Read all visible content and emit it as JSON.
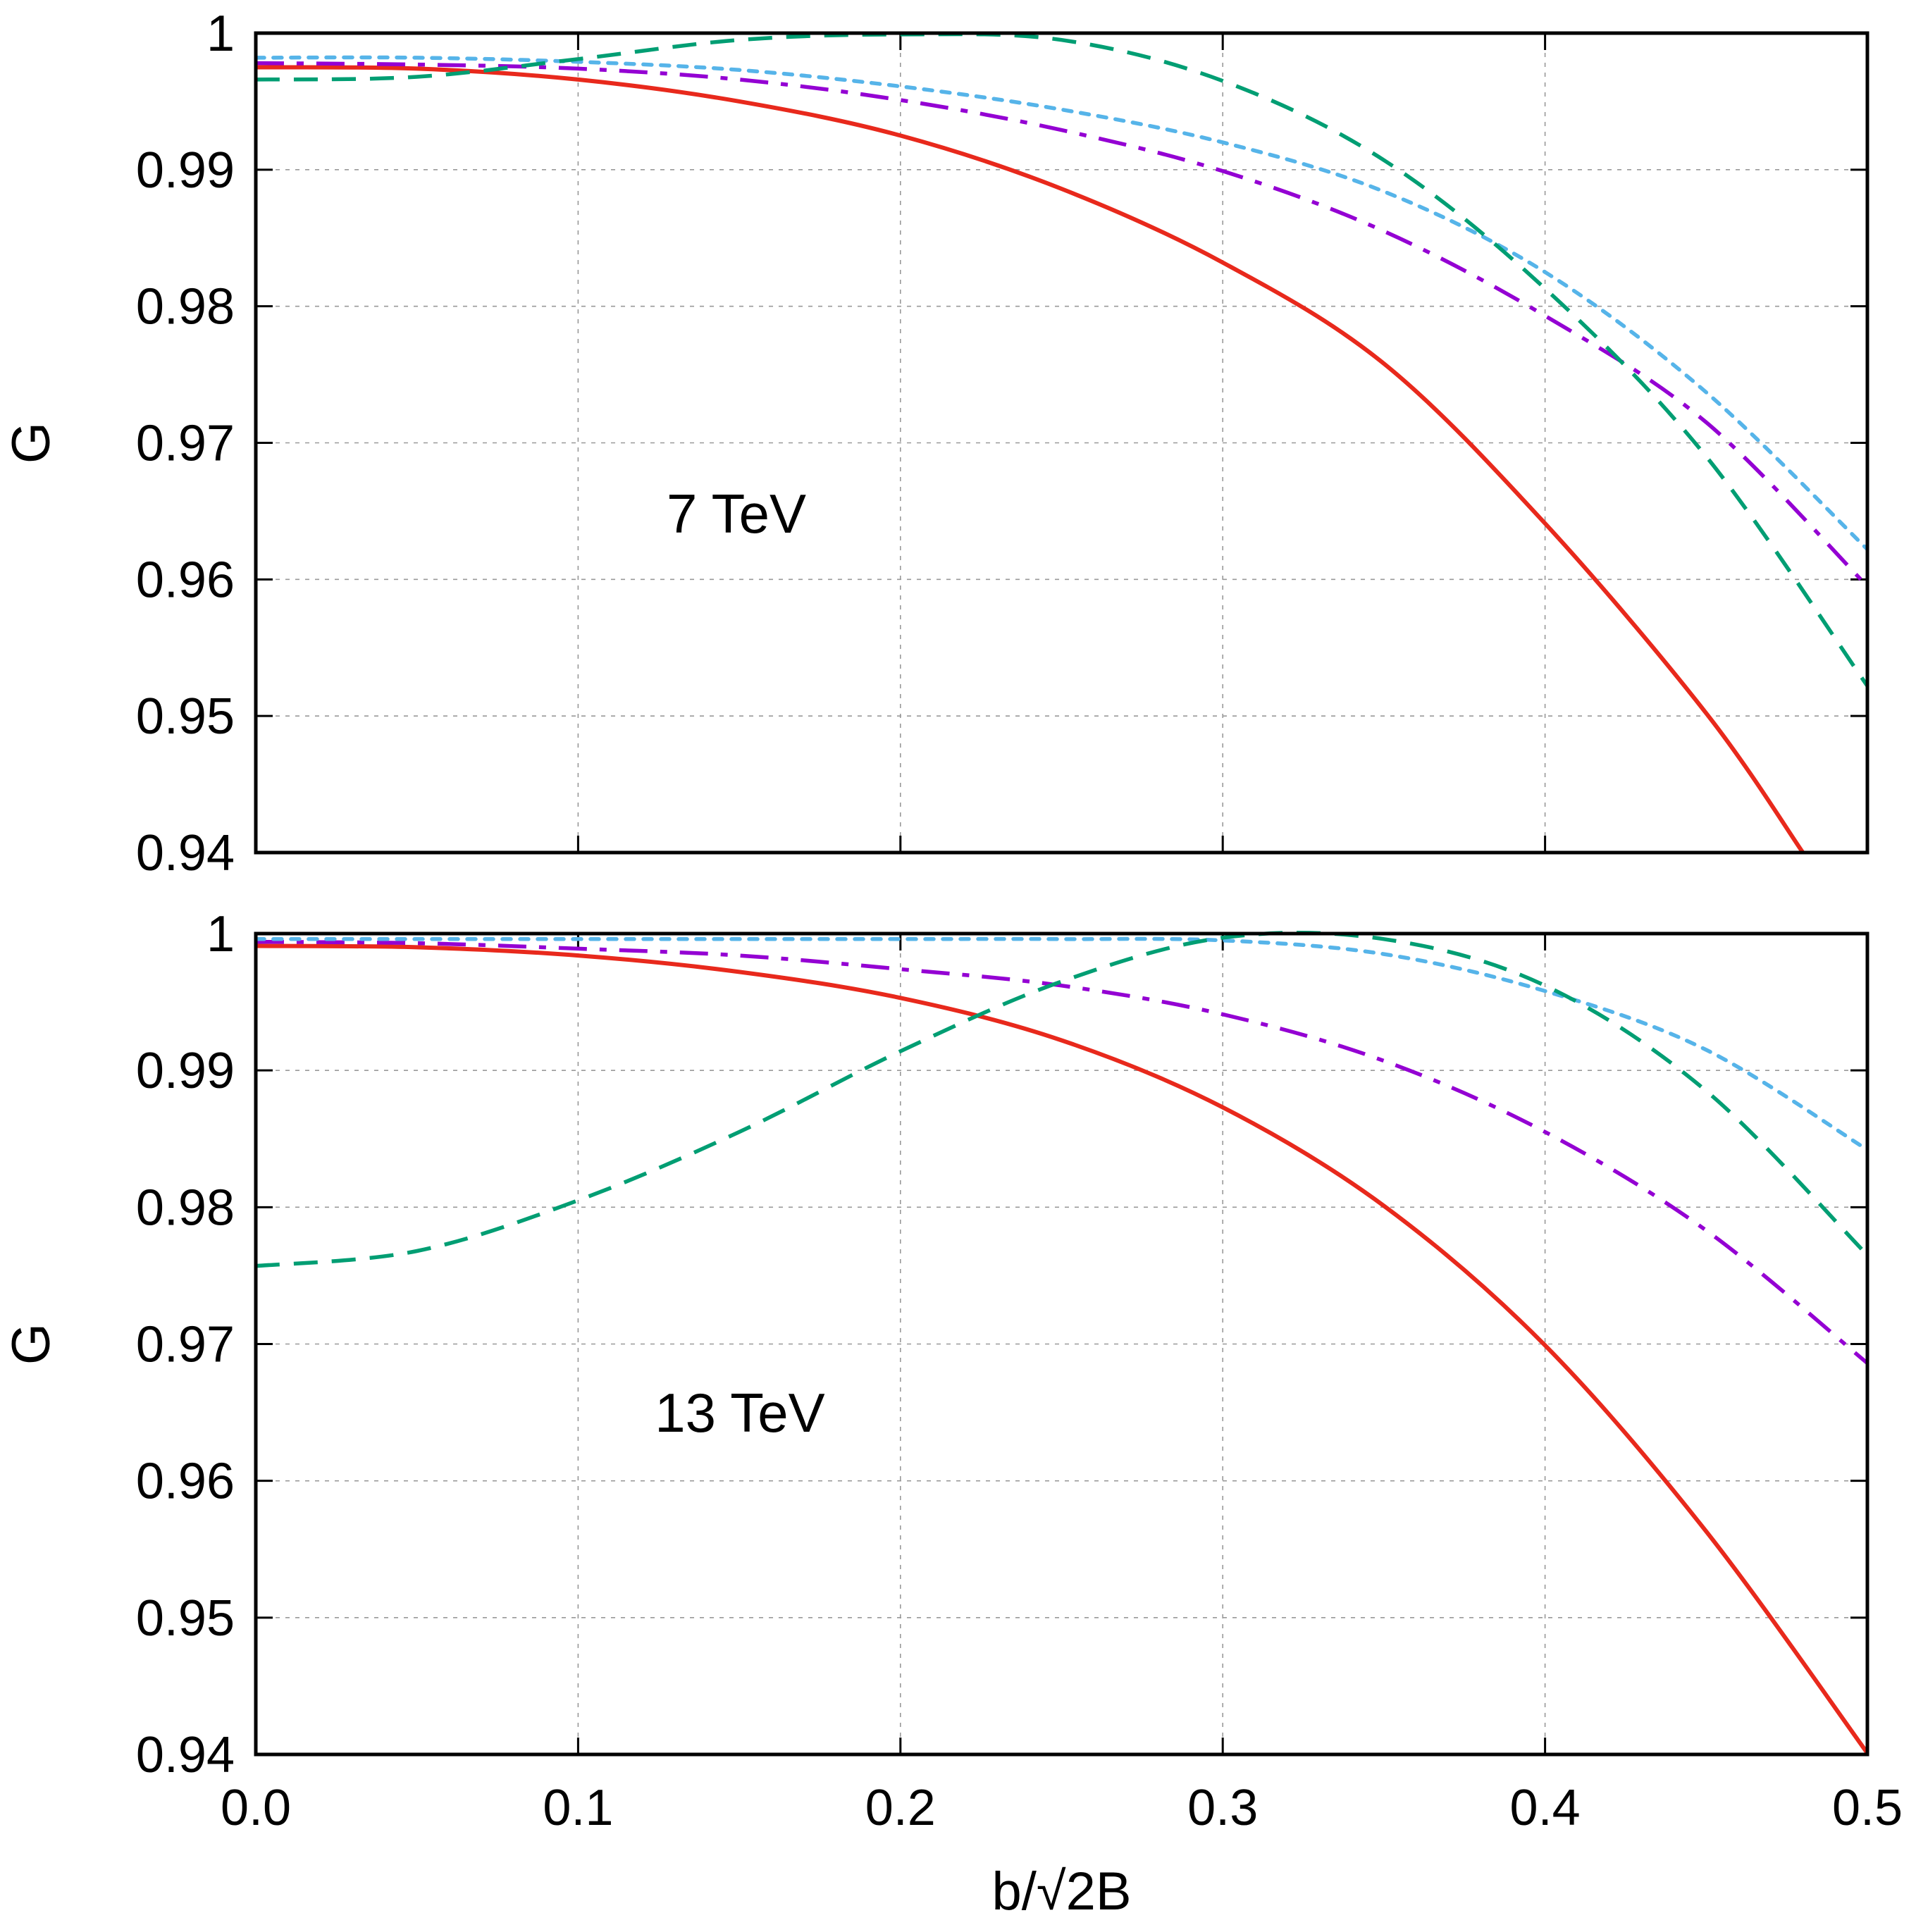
{
  "chart_data": [
    {
      "type": "line",
      "panel": "top",
      "annotation": "7 TeV",
      "xlabel": "",
      "ylabel": "G",
      "xlim": [
        0.0,
        0.5
      ],
      "ylim": [
        0.94,
        1.0
      ],
      "xticks": [
        0.0,
        0.1,
        0.2,
        0.3,
        0.4,
        0.5
      ],
      "yticks": [
        0.94,
        0.95,
        0.96,
        0.97,
        0.98,
        0.99,
        1.0
      ],
      "ytick_labels": [
        "0.94",
        "0.95",
        "0.96",
        "0.97",
        "0.98",
        "0.99",
        "1"
      ],
      "grid": true,
      "series": [
        {
          "name": "red-solid",
          "color": "#e8291c",
          "dash": "solid",
          "x": [
            0.0,
            0.05,
            0.1,
            0.15,
            0.2,
            0.25,
            0.3,
            0.35,
            0.4,
            0.45,
            0.48
          ],
          "y": [
            0.9975,
            0.9974,
            0.9966,
            0.995,
            0.9925,
            0.9886,
            0.9832,
            0.9758,
            0.9641,
            0.9502,
            0.94
          ]
        },
        {
          "name": "purple-dashdot",
          "color": "#9400d3",
          "dash": "dashdot",
          "x": [
            0.0,
            0.05,
            0.1,
            0.15,
            0.2,
            0.25,
            0.3,
            0.35,
            0.4,
            0.45,
            0.5
          ],
          "y": [
            0.9978,
            0.9977,
            0.9974,
            0.9966,
            0.9951,
            0.9929,
            0.9899,
            0.9855,
            0.9793,
            0.9715,
            0.9595
          ]
        },
        {
          "name": "cyan-dotted",
          "color": "#56b4e9",
          "dash": "dotted",
          "x": [
            0.0,
            0.05,
            0.1,
            0.15,
            0.2,
            0.25,
            0.3,
            0.35,
            0.4,
            0.45,
            0.5
          ],
          "y": [
            0.9982,
            0.9982,
            0.9979,
            0.9973,
            0.9961,
            0.9944,
            0.992,
            0.9884,
            0.9825,
            0.9737,
            0.9622
          ]
        },
        {
          "name": "green-dashed",
          "color": "#009e73",
          "dash": "dashed",
          "x": [
            0.0,
            0.05,
            0.1,
            0.15,
            0.2,
            0.25,
            0.3,
            0.35,
            0.4,
            0.45,
            0.5
          ],
          "y": [
            0.9966,
            0.9968,
            0.9981,
            0.9995,
            0.9999,
            0.9995,
            0.9965,
            0.9907,
            0.9813,
            0.969,
            0.9522
          ]
        }
      ]
    },
    {
      "type": "line",
      "panel": "bottom",
      "annotation": "13 TeV",
      "xlabel": "b/√2B",
      "ylabel": "G",
      "xlim": [
        0.0,
        0.5
      ],
      "ylim": [
        0.94,
        1.0
      ],
      "xticks": [
        0.0,
        0.1,
        0.2,
        0.3,
        0.4,
        0.5
      ],
      "xtick_labels": [
        "0.0",
        "0.1",
        "0.2",
        "0.3",
        "0.4",
        "0.5"
      ],
      "yticks": [
        0.94,
        0.95,
        0.96,
        0.97,
        0.98,
        0.99,
        1.0
      ],
      "ytick_labels": [
        "0.94",
        "0.95",
        "0.96",
        "0.97",
        "0.98",
        "0.99",
        "1"
      ],
      "grid": true,
      "series": [
        {
          "name": "red-solid",
          "color": "#e8291c",
          "dash": "solid",
          "x": [
            0.0,
            0.05,
            0.1,
            0.15,
            0.2,
            0.25,
            0.3,
            0.35,
            0.4,
            0.45,
            0.5
          ],
          "y": [
            0.9991,
            0.999,
            0.9984,
            0.9972,
            0.9953,
            0.9922,
            0.9873,
            0.9801,
            0.9699,
            0.9563,
            0.9401
          ]
        },
        {
          "name": "purple-dashdot",
          "color": "#9400d3",
          "dash": "dashdot",
          "x": [
            0.0,
            0.05,
            0.1,
            0.15,
            0.2,
            0.25,
            0.3,
            0.35,
            0.4,
            0.45,
            0.5
          ],
          "y": [
            0.9994,
            0.9993,
            0.9989,
            0.9984,
            0.9974,
            0.9962,
            0.9941,
            0.9907,
            0.9855,
            0.9783,
            0.9686
          ]
        },
        {
          "name": "cyan-dotted",
          "color": "#56b4e9",
          "dash": "dotted",
          "x": [
            0.0,
            0.05,
            0.1,
            0.15,
            0.2,
            0.25,
            0.3,
            0.35,
            0.4,
            0.45,
            0.5
          ],
          "y": [
            0.9996,
            0.9996,
            0.9996,
            0.9996,
            0.9996,
            0.9996,
            0.9995,
            0.9985,
            0.9958,
            0.9915,
            0.9842
          ]
        },
        {
          "name": "green-dashed",
          "color": "#009e73",
          "dash": "dashed",
          "x": [
            0.0,
            0.05,
            0.1,
            0.15,
            0.2,
            0.25,
            0.3,
            0.35,
            0.4,
            0.45,
            0.5
          ],
          "y": [
            0.9757,
            0.9768,
            0.9805,
            0.9855,
            0.9914,
            0.9965,
            0.9997,
            0.9996,
            0.9962,
            0.9885,
            0.9765
          ]
        }
      ]
    }
  ]
}
